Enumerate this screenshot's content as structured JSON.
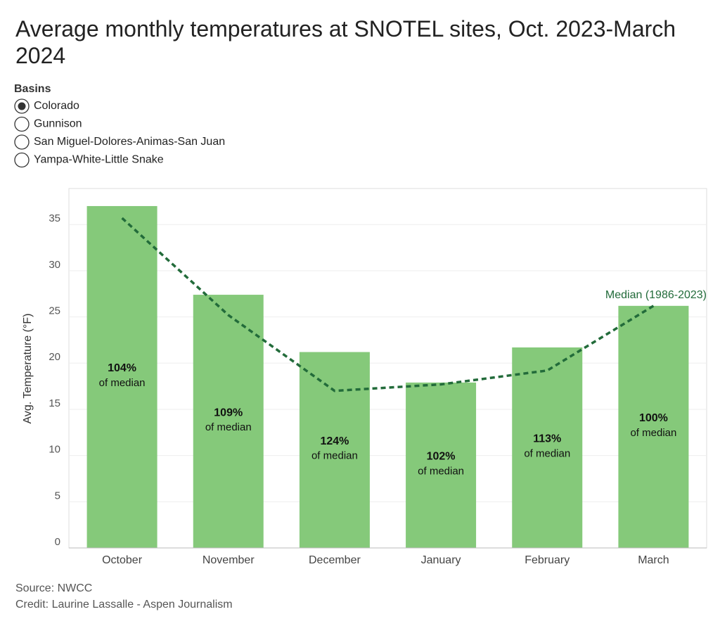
{
  "chart_data": {
    "type": "bar",
    "title": "Average monthly temperatures at SNOTEL sites, Oct. 2023-March 2024",
    "filter": {
      "title": "Basins",
      "options": [
        "Colorado",
        "Gunnison",
        "San Miguel-Dolores-Animas-San Juan",
        "Yampa-White-Little Snake"
      ],
      "selected": 0
    },
    "y_label": "Avg. Temperature (°F)",
    "categories": [
      "October",
      "November",
      "December",
      "January",
      "February",
      "March"
    ],
    "series": [
      {
        "name": "Average",
        "color": "#85c97a",
        "values": [
          37.0,
          27.4,
          21.2,
          17.9,
          21.7,
          26.2
        ]
      },
      {
        "name": "Median (1986-2023)",
        "color": "#226b3a",
        "line": "dashed",
        "values": [
          35.7,
          25.2,
          17.0,
          17.7,
          19.2,
          26.2
        ]
      }
    ],
    "bar_labels": [
      [
        "104%",
        "of median"
      ],
      [
        "109%",
        "of median"
      ],
      [
        "124%",
        "of median"
      ],
      [
        "102%",
        "of median"
      ],
      [
        "113%",
        "of median"
      ],
      [
        "100%",
        "of median"
      ]
    ],
    "ylim": [
      0,
      38.9
    ],
    "yticks": [
      0,
      5,
      10,
      15,
      20,
      25,
      30,
      35
    ],
    "grid": true,
    "source": "Source: NWCC",
    "credit": "Credit: Laurine Lassalle - Aspen Journalism"
  }
}
